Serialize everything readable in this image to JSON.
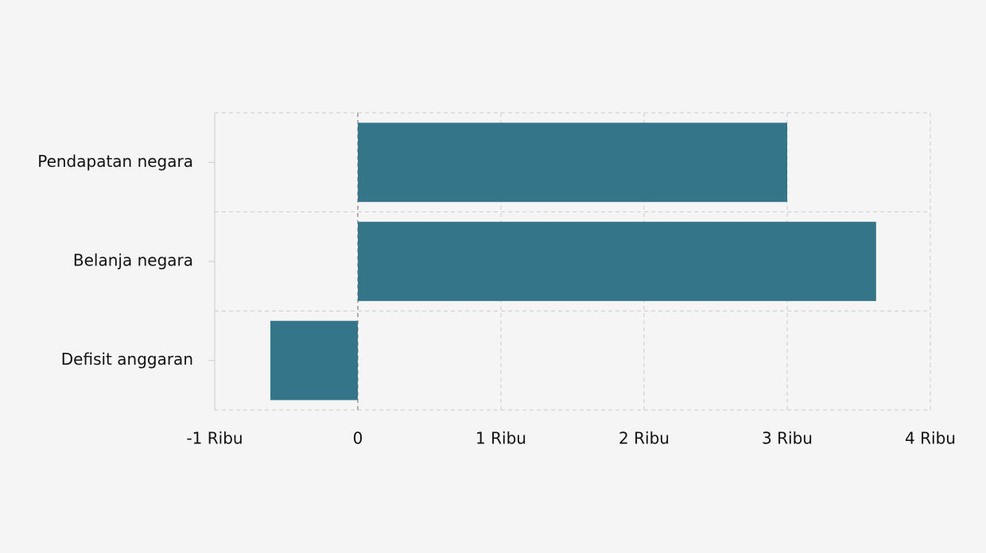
{
  "chart_data": {
    "type": "bar",
    "orientation": "horizontal",
    "categories": [
      "Pendapatan negara",
      "Belanja negara",
      "Defisit anggaran"
    ],
    "values": [
      3000,
      3621,
      -611
    ],
    "color": "#317287",
    "xlim": [
      -1000,
      4000
    ],
    "xticks": [
      {
        "value": -1000,
        "label": "-1 Ribu"
      },
      0,
      {
        "value": 1000,
        "label": "1 Ribu"
      },
      {
        "value": 2000,
        "label": "2 Ribu"
      },
      {
        "value": 3000,
        "label": "3 Ribu"
      },
      {
        "value": 4000,
        "label": "4 Ribu"
      }
    ],
    "grid": true
  }
}
